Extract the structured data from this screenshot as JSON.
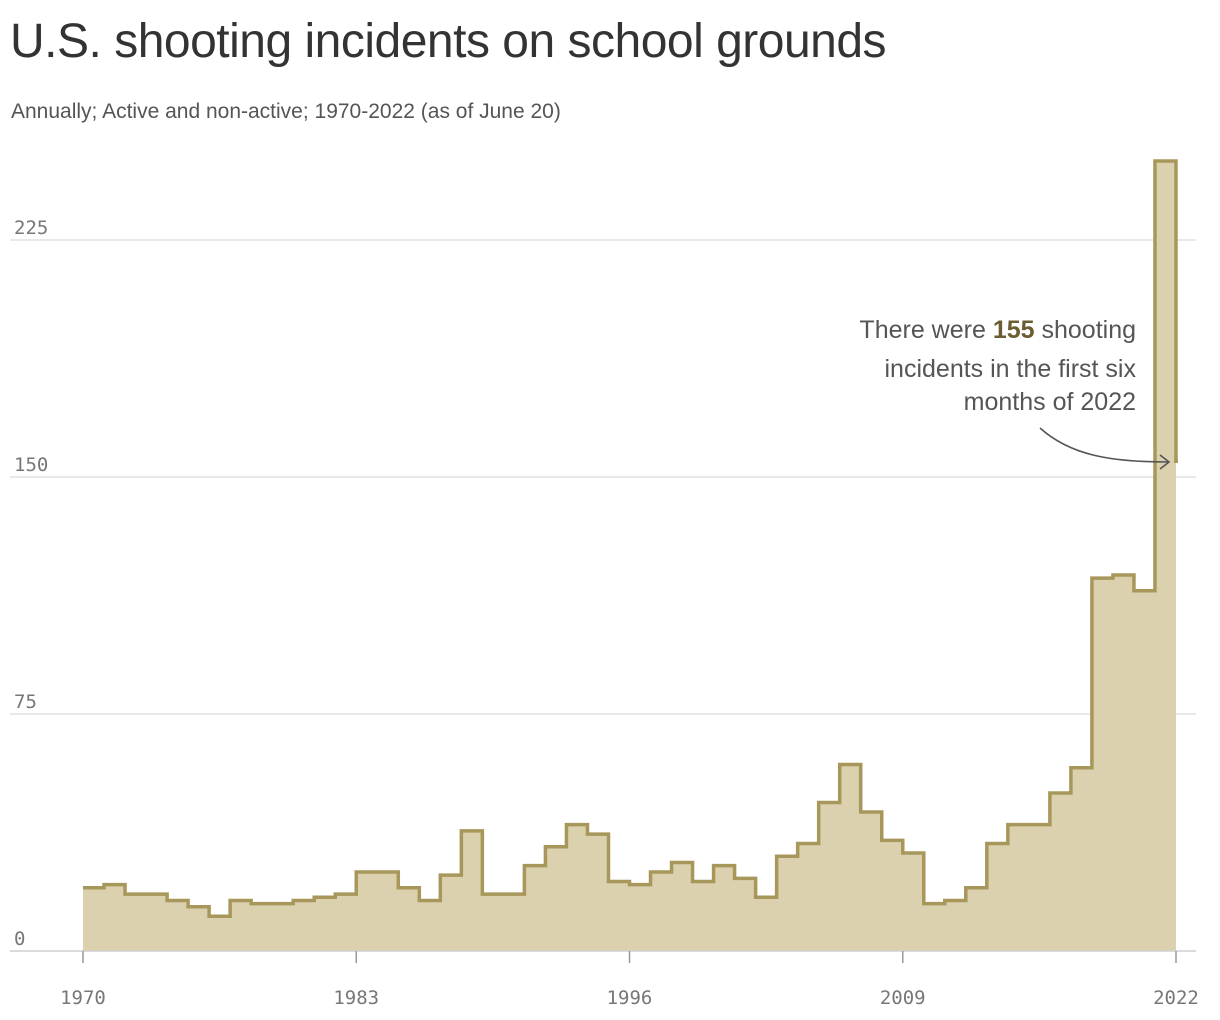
{
  "header": {
    "title": "U.S. shooting incidents on school grounds",
    "subtitle": "Annually; Active and non-active; 1970-2022 (as of June 20)"
  },
  "colors": {
    "line": "#a8975a",
    "fill": "#dbd1af",
    "annotation_value": "#6b5d31",
    "grid": "#e2e2e2",
    "axis_text": "#777777"
  },
  "annotation": {
    "line1_before": "There were ",
    "value": "155",
    "line1_after": " shooting",
    "line2": "incidents in the first six",
    "line3": "months of 2022"
  },
  "chart_data": {
    "type": "area",
    "style": "step",
    "title": "U.S. shooting incidents on school grounds",
    "subtitle": "Annually; Active and non-active; 1970-2022 (as of June 20)",
    "xlabel": "",
    "ylabel": "",
    "xlim": [
      1970,
      2022
    ],
    "ylim": [
      0,
      250
    ],
    "x_ticks": [
      1970,
      1983,
      1996,
      2009,
      2022
    ],
    "y_ticks": [
      0,
      75,
      150,
      225
    ],
    "grid": "horizontal",
    "x": [
      1970,
      1971,
      1972,
      1973,
      1974,
      1975,
      1976,
      1977,
      1978,
      1979,
      1980,
      1981,
      1982,
      1983,
      1984,
      1985,
      1986,
      1987,
      1988,
      1989,
      1990,
      1991,
      1992,
      1993,
      1994,
      1995,
      1996,
      1997,
      1998,
      1999,
      2000,
      2001,
      2002,
      2003,
      2004,
      2005,
      2006,
      2007,
      2008,
      2009,
      2010,
      2011,
      2012,
      2013,
      2014,
      2015,
      2016,
      2017,
      2018,
      2019,
      2020,
      2021,
      2022
    ],
    "values": [
      20,
      21,
      18,
      18,
      16,
      14,
      11,
      16,
      15,
      15,
      16,
      17,
      18,
      25,
      25,
      20,
      16,
      24,
      38,
      18,
      18,
      27,
      33,
      40,
      37,
      22,
      21,
      25,
      28,
      22,
      27,
      23,
      17,
      30,
      34,
      47,
      59,
      44,
      35,
      31,
      15,
      16,
      20,
      34,
      40,
      40,
      50,
      58,
      118,
      119,
      114,
      250,
      155
    ],
    "annotations": [
      {
        "text": "There were 155 shooting incidents in the first six months of 2022",
        "x": 2022,
        "y": 155
      }
    ]
  }
}
